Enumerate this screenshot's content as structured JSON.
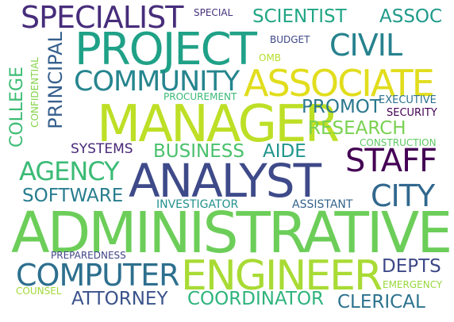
{
  "word_cloud": {
    "words": [
      {
        "id": "administrative",
        "text": "ADMINISTRATIVE",
        "color": "#6cce59"
      },
      {
        "id": "analyst",
        "text": "ANALYST",
        "color": "#3e4a89"
      },
      {
        "id": "manager",
        "text": "MANAGER",
        "color": "#bddf26"
      },
      {
        "id": "project",
        "text": "PROJECT",
        "color": "#1fa187"
      },
      {
        "id": "engineer",
        "text": "ENGINEER",
        "color": "#a8db34"
      },
      {
        "id": "associate",
        "text": "ASSOCIATE",
        "color": "#e1dd1d"
      },
      {
        "id": "community",
        "text": "COMMUNITY",
        "color": "#25858e"
      },
      {
        "id": "specialist",
        "text": "SPECIALIST",
        "color": "#472d7b"
      },
      {
        "id": "computer",
        "text": "COMPUTER",
        "color": "#2d6f8e"
      },
      {
        "id": "staff",
        "text": "STAFF",
        "color": "#440154"
      },
      {
        "id": "civil",
        "text": "CIVIL",
        "color": "#26828e"
      },
      {
        "id": "agency",
        "text": "AGENCY",
        "color": "#3bbb75"
      },
      {
        "id": "city",
        "text": "CITY",
        "color": "#31688e"
      },
      {
        "id": "scientist",
        "text": "SCIENTIST",
        "color": "#21a585"
      },
      {
        "id": "assoc",
        "text": "ASSOC",
        "color": "#1f9a8a"
      },
      {
        "id": "research",
        "text": "RESEARCH",
        "color": "#7ad151"
      },
      {
        "id": "promot",
        "text": "PROMOT",
        "color": "#2a778e"
      },
      {
        "id": "business",
        "text": "BUSINESS",
        "color": "#4ac16d"
      },
      {
        "id": "aide",
        "text": "AIDE",
        "color": "#1f968b"
      },
      {
        "id": "software",
        "text": "SOFTWARE",
        "color": "#287d8e"
      },
      {
        "id": "coordinator",
        "text": "COORDINATOR",
        "color": "#2fb47c"
      },
      {
        "id": "clerical",
        "text": "CLERICAL",
        "color": "#2c728e"
      },
      {
        "id": "attorney",
        "text": "ATTORNEY",
        "color": "#3b528b"
      },
      {
        "id": "depts",
        "text": "DEPTS",
        "color": "#3e4989"
      },
      {
        "id": "principal",
        "text": "PRINCIPAL",
        "color": "#355f8d"
      },
      {
        "id": "college",
        "text": "COLLEGE",
        "color": "#3dbc74"
      },
      {
        "id": "systems",
        "text": "SYSTEMS",
        "color": "#482878"
      },
      {
        "id": "investigator",
        "text": "INVESTIGATOR",
        "color": "#21918c"
      },
      {
        "id": "assistant",
        "text": "ASSISTANT",
        "color": "#33638d"
      },
      {
        "id": "executive",
        "text": "EXECUTIVE",
        "color": "#2c718e"
      },
      {
        "id": "security",
        "text": "SECURITY",
        "color": "#440154"
      },
      {
        "id": "construction",
        "text": "CONSTRUCTION",
        "color": "#5ec962"
      },
      {
        "id": "budget",
        "text": "BUDGET",
        "color": "#3f4788"
      },
      {
        "id": "special",
        "text": "SPECIAL",
        "color": "#46337e"
      },
      {
        "id": "omb",
        "text": "OMB",
        "color": "#b5de2b"
      },
      {
        "id": "procurement",
        "text": "PROCUREMENT",
        "color": "#3aba76"
      },
      {
        "id": "confidential",
        "text": "CONFIDENTIAL",
        "color": "#84d44b"
      },
      {
        "id": "preparedness",
        "text": "PREPAREDNESS",
        "color": "#414487"
      },
      {
        "id": "emergency",
        "text": "EMERGENCY",
        "color": "#98d83e"
      },
      {
        "id": "counsel",
        "text": "COUNSEL",
        "color": "#a2da37"
      }
    ]
  }
}
